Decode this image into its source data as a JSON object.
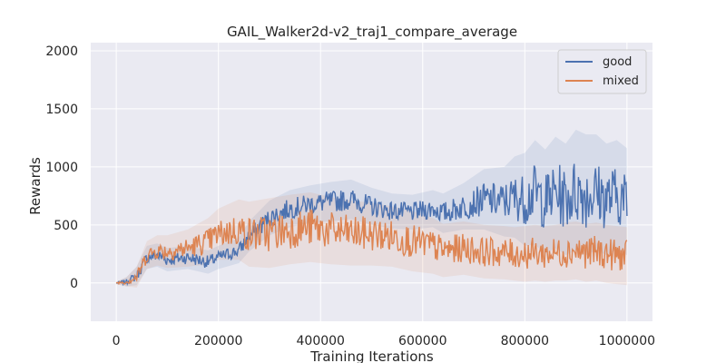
{
  "chart_data": {
    "type": "line",
    "title": "GAIL_Walker2d-v2_traj1_compare_average",
    "xlabel": "Training Iterations",
    "ylabel": "Rewards",
    "xlim": [
      -50000,
      1050000
    ],
    "ylim": [
      -330,
      2070
    ],
    "xticks": [
      0,
      200000,
      400000,
      600000,
      800000,
      1000000
    ],
    "yticks": [
      0,
      500,
      1000,
      1500,
      2000
    ],
    "grid": true,
    "legend_position": "top-right",
    "series": [
      {
        "name": "good",
        "color": "#4c72b0",
        "x": [
          0,
          20000,
          40000,
          60000,
          80000,
          100000,
          140000,
          180000,
          200000,
          240000,
          260000,
          300000,
          340000,
          380000,
          420000,
          460000,
          500000,
          540000,
          580000,
          620000,
          640000,
          680000,
          720000,
          760000,
          780000,
          800000,
          820000,
          840000,
          860000,
          880000,
          900000,
          920000,
          940000,
          960000,
          980000,
          1000000
        ],
        "values": [
          0,
          10,
          60,
          220,
          240,
          200,
          220,
          180,
          220,
          280,
          400,
          560,
          640,
          680,
          700,
          720,
          660,
          620,
          610,
          640,
          600,
          660,
          720,
          700,
          740,
          720,
          780,
          700,
          780,
          720,
          800,
          760,
          780,
          720,
          760,
          700
        ],
        "spread": [
          10,
          40,
          80,
          100,
          100,
          100,
          100,
          100,
          100,
          110,
          130,
          150,
          160,
          160,
          170,
          170,
          160,
          150,
          150,
          160,
          170,
          200,
          260,
          300,
          350,
          400,
          450,
          450,
          480,
          480,
          520,
          520,
          500,
          480,
          470,
          460
        ]
      },
      {
        "name": "mixed",
        "color": "#dd8452",
        "x": [
          0,
          20000,
          40000,
          60000,
          80000,
          100000,
          140000,
          180000,
          200000,
          240000,
          260000,
          300000,
          340000,
          380000,
          420000,
          460000,
          500000,
          540000,
          580000,
          620000,
          640000,
          680000,
          720000,
          760000,
          780000,
          800000,
          820000,
          840000,
          860000,
          880000,
          900000,
          920000,
          940000,
          960000,
          980000,
          1000000
        ],
        "values": [
          0,
          10,
          50,
          240,
          280,
          270,
          300,
          360,
          420,
          460,
          420,
          430,
          460,
          480,
          450,
          430,
          420,
          400,
          360,
          320,
          280,
          300,
          270,
          260,
          250,
          250,
          260,
          250,
          260,
          270,
          280,
          260,
          270,
          250,
          240,
          230
        ],
        "spread": [
          10,
          40,
          90,
          120,
          130,
          140,
          160,
          200,
          220,
          260,
          280,
          300,
          300,
          300,
          290,
          280,
          270,
          260,
          260,
          240,
          230,
          230,
          230,
          230,
          230,
          240,
          240,
          240,
          240,
          250,
          250,
          250,
          250,
          250,
          250,
          250
        ]
      }
    ]
  }
}
